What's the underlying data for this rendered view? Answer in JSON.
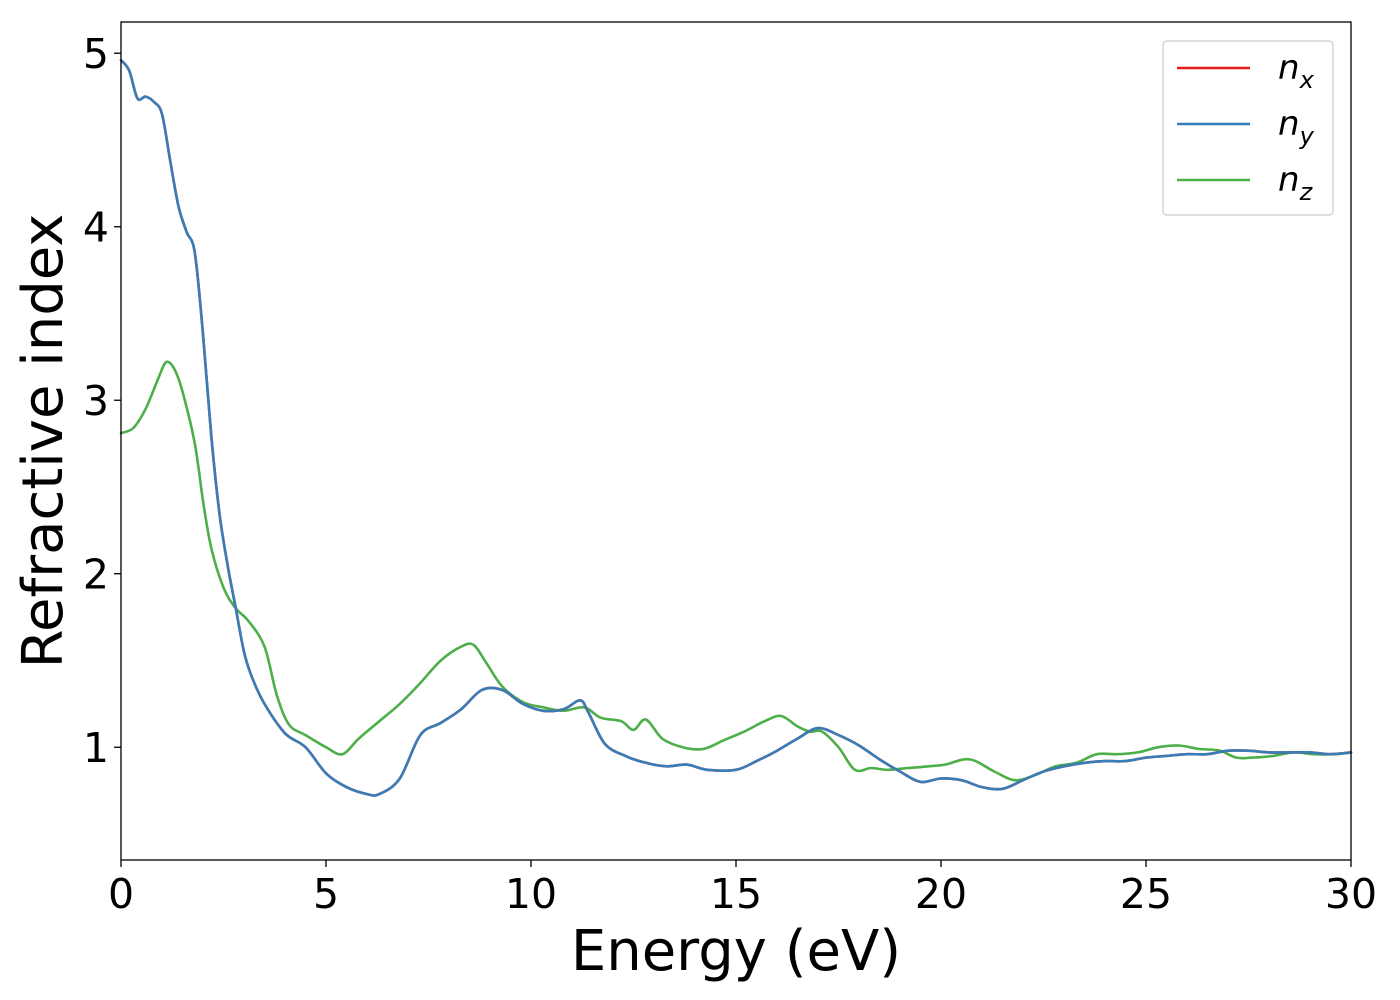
{
  "chart_data": {
    "type": "line",
    "xlabel": "Energy (eV)",
    "ylabel": "Refractive index",
    "xlim": [
      0,
      30
    ],
    "ylim": [
      0.35,
      5.18
    ],
    "xticks": [
      0,
      5,
      10,
      15,
      20,
      25,
      30
    ],
    "yticks": [
      1,
      2,
      3,
      4,
      5
    ],
    "grid": false,
    "legend_position": "top-right",
    "series": [
      {
        "name": "n_x",
        "label_main": "n",
        "label_sub": "x",
        "color": "#e41a1c",
        "x": [
          0,
          0.2,
          0.4,
          0.6,
          0.8,
          1.0,
          1.2,
          1.4,
          1.6,
          1.8,
          2.0,
          2.2,
          2.4,
          2.6,
          2.8,
          3.0,
          3.2,
          3.5,
          4.0,
          4.5,
          5.0,
          5.5,
          6.0,
          6.3,
          6.8,
          7.3,
          7.8,
          8.3,
          8.8,
          9.3,
          9.8,
          10.3,
          10.8,
          11.2,
          11.4,
          11.8,
          12.3,
          12.8,
          13.3,
          13.8,
          14.3,
          15.0,
          15.5,
          16.0,
          16.5,
          17.0,
          17.5,
          18.0,
          18.5,
          19.0,
          19.5,
          20.0,
          20.5,
          21.0,
          21.5,
          22.0,
          22.5,
          23.0,
          23.5,
          24.0,
          24.5,
          25.0,
          25.5,
          26.0,
          26.5,
          27.0,
          27.5,
          28.0,
          28.5,
          29.0,
          29.5,
          30.0
        ],
        "y": [
          4.96,
          4.9,
          4.74,
          4.75,
          4.72,
          4.65,
          4.38,
          4.12,
          3.97,
          3.85,
          3.38,
          2.8,
          2.35,
          2.05,
          1.8,
          1.55,
          1.4,
          1.25,
          1.08,
          1.0,
          0.85,
          0.77,
          0.73,
          0.73,
          0.82,
          1.07,
          1.14,
          1.22,
          1.33,
          1.33,
          1.25,
          1.21,
          1.22,
          1.27,
          1.2,
          1.02,
          0.95,
          0.91,
          0.89,
          0.9,
          0.87,
          0.87,
          0.92,
          0.98,
          1.05,
          1.11,
          1.07,
          1.01,
          0.93,
          0.86,
          0.8,
          0.82,
          0.81,
          0.77,
          0.76,
          0.81,
          0.86,
          0.89,
          0.91,
          0.92,
          0.92,
          0.94,
          0.95,
          0.96,
          0.96,
          0.98,
          0.98,
          0.97,
          0.97,
          0.97,
          0.96,
          0.97
        ]
      },
      {
        "name": "n_y",
        "label_main": "n",
        "label_sub": "y",
        "color": "#377eb8",
        "x": [
          0,
          0.2,
          0.4,
          0.6,
          0.8,
          1.0,
          1.2,
          1.4,
          1.6,
          1.8,
          2.0,
          2.2,
          2.4,
          2.6,
          2.8,
          3.0,
          3.2,
          3.5,
          4.0,
          4.5,
          5.0,
          5.5,
          6.0,
          6.3,
          6.8,
          7.3,
          7.8,
          8.3,
          8.8,
          9.3,
          9.8,
          10.3,
          10.8,
          11.2,
          11.4,
          11.8,
          12.3,
          12.8,
          13.3,
          13.8,
          14.3,
          15.0,
          15.5,
          16.0,
          16.5,
          17.0,
          17.5,
          18.0,
          18.5,
          19.0,
          19.5,
          20.0,
          20.5,
          21.0,
          21.5,
          22.0,
          22.5,
          23.0,
          23.5,
          24.0,
          24.5,
          25.0,
          25.5,
          26.0,
          26.5,
          27.0,
          27.5,
          28.0,
          28.5,
          29.0,
          29.5,
          30.0
        ],
        "y": [
          4.96,
          4.9,
          4.74,
          4.75,
          4.72,
          4.65,
          4.38,
          4.12,
          3.97,
          3.85,
          3.38,
          2.8,
          2.35,
          2.05,
          1.8,
          1.55,
          1.4,
          1.25,
          1.08,
          1.0,
          0.85,
          0.77,
          0.73,
          0.73,
          0.82,
          1.07,
          1.14,
          1.22,
          1.33,
          1.33,
          1.25,
          1.21,
          1.22,
          1.27,
          1.2,
          1.02,
          0.95,
          0.91,
          0.89,
          0.9,
          0.87,
          0.87,
          0.92,
          0.98,
          1.05,
          1.11,
          1.07,
          1.01,
          0.93,
          0.86,
          0.8,
          0.82,
          0.81,
          0.77,
          0.76,
          0.81,
          0.86,
          0.89,
          0.91,
          0.92,
          0.92,
          0.94,
          0.95,
          0.96,
          0.96,
          0.98,
          0.98,
          0.97,
          0.97,
          0.97,
          0.96,
          0.97
        ]
      },
      {
        "name": "n_z",
        "label_main": "n",
        "label_sub": "z",
        "color": "#4daf4a",
        "x": [
          0,
          0.3,
          0.6,
          0.9,
          1.1,
          1.3,
          1.5,
          1.8,
          2.0,
          2.2,
          2.5,
          2.8,
          3.1,
          3.5,
          3.8,
          4.1,
          4.5,
          5.0,
          5.4,
          5.8,
          6.3,
          6.8,
          7.3,
          7.8,
          8.3,
          8.6,
          8.9,
          9.3,
          9.8,
          10.3,
          10.8,
          11.3,
          11.7,
          12.2,
          12.5,
          12.8,
          13.2,
          13.7,
          14.2,
          14.7,
          15.2,
          15.7,
          16.1,
          16.5,
          16.8,
          17.1,
          17.5,
          17.9,
          18.3,
          18.7,
          19.2,
          19.7,
          20.1,
          20.7,
          21.3,
          21.8,
          22.3,
          22.8,
          23.3,
          23.8,
          24.3,
          24.8,
          25.3,
          25.8,
          26.3,
          26.8,
          27.2,
          27.6,
          28.1,
          28.6,
          29.1,
          29.6,
          30.0
        ],
        "y": [
          2.81,
          2.84,
          2.95,
          3.12,
          3.22,
          3.18,
          3.05,
          2.75,
          2.42,
          2.15,
          1.92,
          1.8,
          1.73,
          1.58,
          1.3,
          1.13,
          1.07,
          1.0,
          0.96,
          1.05,
          1.15,
          1.25,
          1.37,
          1.5,
          1.58,
          1.59,
          1.49,
          1.35,
          1.26,
          1.23,
          1.21,
          1.23,
          1.17,
          1.15,
          1.1,
          1.16,
          1.05,
          1.0,
          0.99,
          1.04,
          1.09,
          1.15,
          1.18,
          1.12,
          1.09,
          1.09,
          1.0,
          0.87,
          0.88,
          0.87,
          0.88,
          0.89,
          0.9,
          0.93,
          0.86,
          0.81,
          0.84,
          0.89,
          0.91,
          0.96,
          0.96,
          0.97,
          1.0,
          1.01,
          0.99,
          0.98,
          0.94,
          0.94,
          0.95,
          0.97,
          0.96,
          0.96,
          0.97
        ]
      }
    ]
  }
}
